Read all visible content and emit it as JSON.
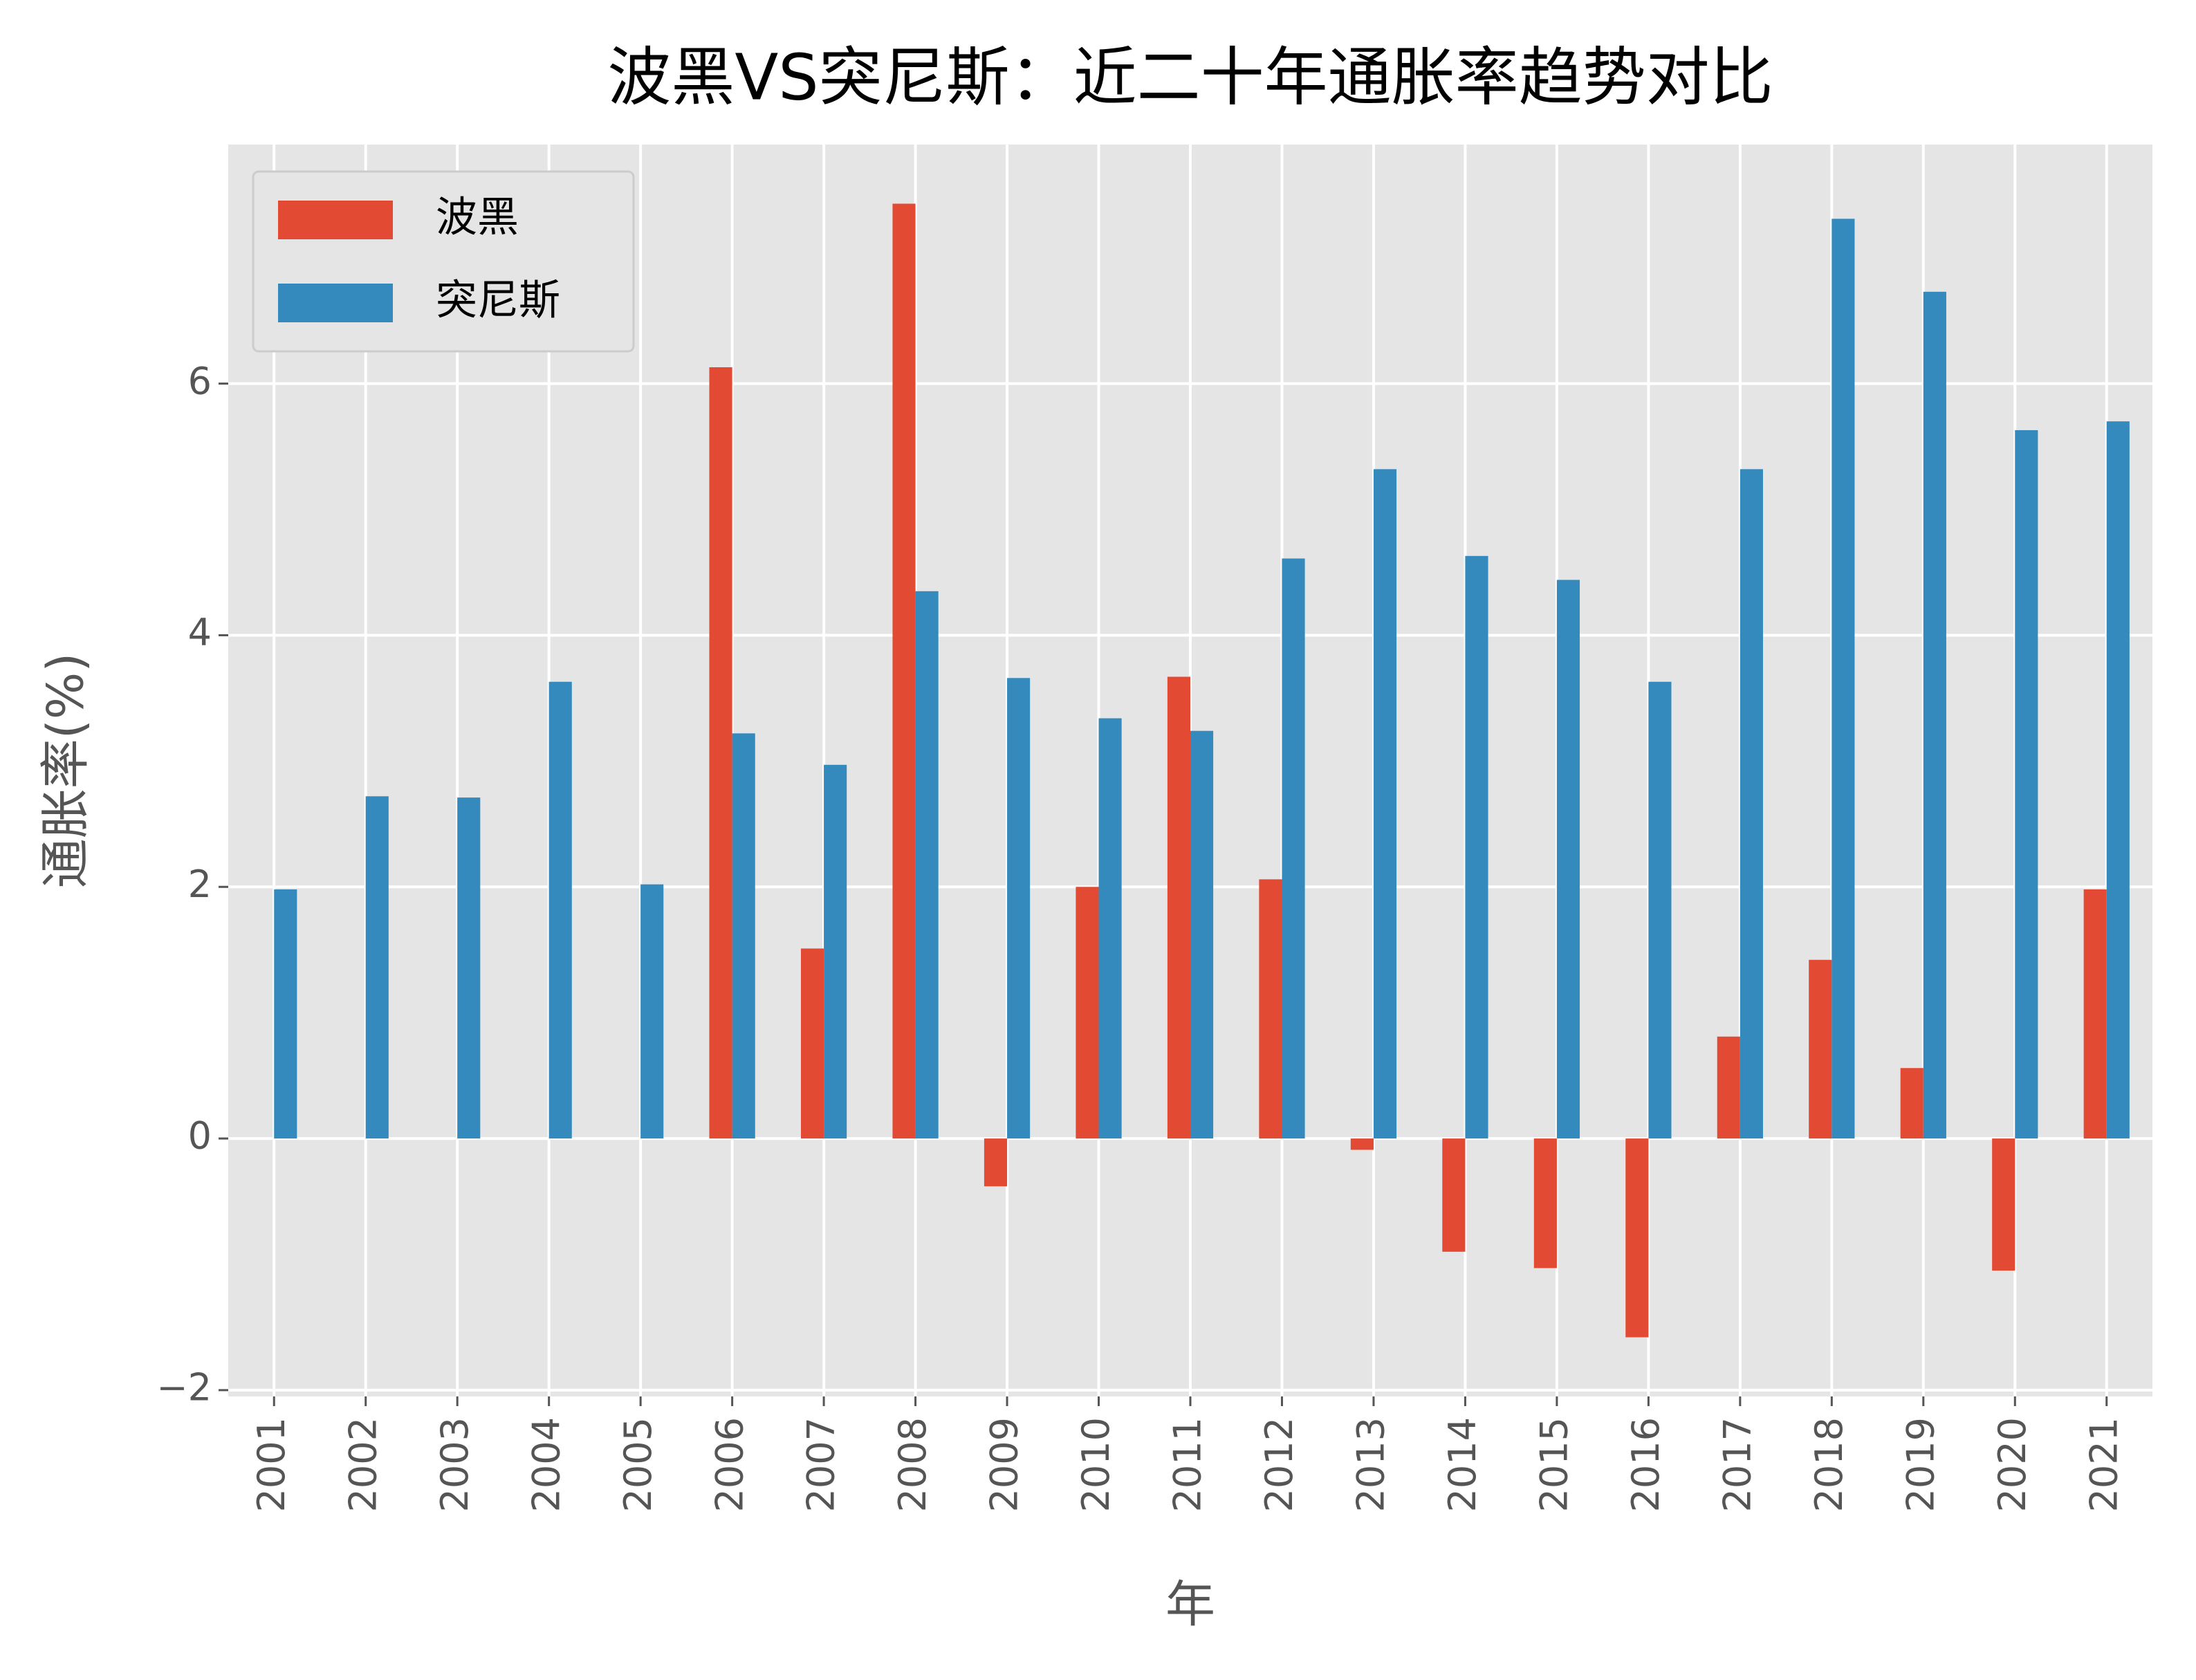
{
  "chart_data": {
    "type": "bar",
    "title": "波黑VS突尼斯：近二十年通胀率趋势对比",
    "x_label": "年",
    "y_label": "通胀率(%)",
    "categories": [
      "2001",
      "2002",
      "2003",
      "2004",
      "2005",
      "2006",
      "2007",
      "2008",
      "2009",
      "2010",
      "2011",
      "2012",
      "2013",
      "2014",
      "2015",
      "2016",
      "2017",
      "2018",
      "2019",
      "2020",
      "2021"
    ],
    "series": [
      {
        "name": "波黑",
        "color": "#e24a33",
        "values": [
          null,
          null,
          null,
          null,
          null,
          6.13,
          1.51,
          7.43,
          -0.38,
          2.0,
          3.67,
          2.06,
          -0.09,
          -0.9,
          -1.03,
          -1.58,
          0.81,
          1.42,
          0.56,
          -1.05,
          1.98
        ]
      },
      {
        "name": "突尼斯",
        "color": "#348abd",
        "values": [
          1.98,
          2.72,
          2.71,
          3.63,
          2.02,
          3.22,
          2.97,
          4.35,
          3.66,
          3.34,
          3.24,
          4.61,
          5.32,
          4.63,
          4.44,
          3.63,
          5.32,
          7.31,
          6.73,
          5.63,
          5.7
        ]
      }
    ],
    "ylim": [
      -2.05,
      7.9
    ],
    "yticks": [
      {
        "value": -2,
        "label": "−2"
      },
      0,
      2,
      4,
      6
    ],
    "grid": true,
    "legend": "upper left"
  }
}
